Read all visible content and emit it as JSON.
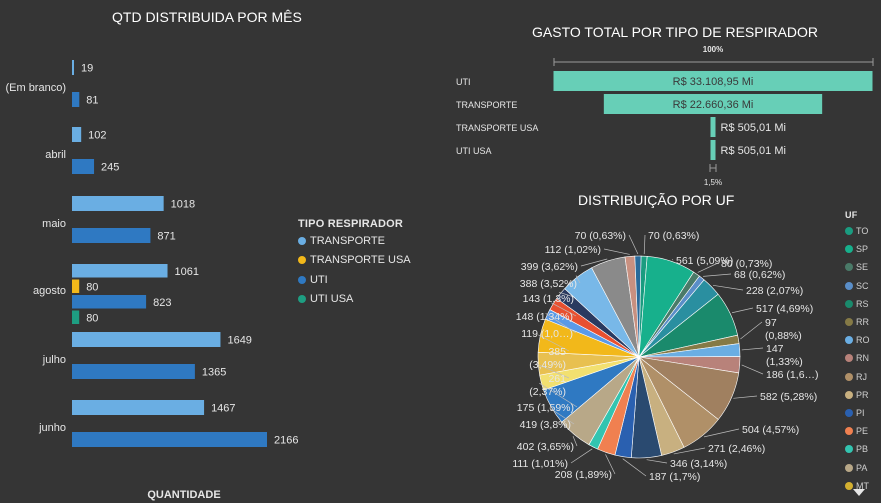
{
  "bar_chart": {
    "title": "QTD DISTRIBUIDA POR MÊS",
    "xlabel": "QUANTIDADE",
    "legend_title": "TIPO RESPIRADOR",
    "legend": [
      {
        "name": "TRANSPORTE",
        "color": "#6aaee3"
      },
      {
        "name": "TRANSPORTE USA",
        "color": "#f2b81a"
      },
      {
        "name": "UTI",
        "color": "#2f79c2"
      },
      {
        "name": "UTI USA",
        "color": "#1e9e82"
      }
    ]
  },
  "funnel": {
    "title": "GASTO TOTAL POR TIPO DE RESPIRADOR",
    "top_pct": "100%",
    "bottom_pct": "1,5%"
  },
  "pie": {
    "title": "DISTRIBUIÇÃO POR UF",
    "legend_title": "UF",
    "legend": [
      {
        "name": "TO",
        "color": "#1a9c80"
      },
      {
        "name": "SP",
        "color": "#17b08c"
      },
      {
        "name": "SE",
        "color": "#4a7a68"
      },
      {
        "name": "SC",
        "color": "#5a8ec8"
      },
      {
        "name": "RS",
        "color": "#1a8a6c"
      },
      {
        "name": "RR",
        "color": "#857a46"
      },
      {
        "name": "RO",
        "color": "#6aaee3"
      },
      {
        "name": "RN",
        "color": "#b8827a"
      },
      {
        "name": "RJ",
        "color": "#b09068"
      },
      {
        "name": "PR",
        "color": "#c8b080"
      },
      {
        "name": "PI",
        "color": "#2a60b0"
      },
      {
        "name": "PE",
        "color": "#f08050"
      },
      {
        "name": "PB",
        "color": "#33c4b0"
      },
      {
        "name": "PA",
        "color": "#b8a888"
      },
      {
        "name": "MT",
        "color": "#d4b030"
      }
    ]
  },
  "chart_data": [
    {
      "type": "bar",
      "title": "QTD DISTRIBUIDA POR MÊS",
      "xlabel": "QUANTIDADE",
      "categories": [
        "(Em branco)",
        "abril",
        "maio",
        "agosto",
        "julho",
        "junho"
      ],
      "series": [
        {
          "name": "TRANSPORTE",
          "values": [
            19,
            102,
            1018,
            1061,
            1649,
            1467
          ]
        },
        {
          "name": "TRANSPORTE USA",
          "values": [
            null,
            null,
            null,
            80,
            null,
            null
          ]
        },
        {
          "name": "UTI",
          "values": [
            81,
            245,
            871,
            823,
            1365,
            2166
          ]
        },
        {
          "name": "UTI USA",
          "values": [
            null,
            null,
            null,
            80,
            null,
            null
          ]
        }
      ]
    },
    {
      "type": "bar",
      "title": "GASTO TOTAL POR TIPO DE RESPIRADOR",
      "categories": [
        "UTI",
        "TRANSPORTE",
        "TRANSPORTE USA",
        "UTI USA"
      ],
      "values": [
        33108.95,
        22660.36,
        505.01,
        505.01
      ],
      "value_labels": [
        "R$ 33.108,95 Mi",
        "R$ 22.660,36 Mi",
        "R$ 505,01 Mi",
        "R$ 505,01 Mi"
      ]
    },
    {
      "type": "pie",
      "title": "DISTRIBUIÇÃO POR UF",
      "slices": [
        {
          "value": 70,
          "label": "70 (0,63%)",
          "color": "#1a9c80"
        },
        {
          "value": 561,
          "label": "561 (5,09%)",
          "color": "#17b08c"
        },
        {
          "value": 80,
          "label": "80 (0,73%)",
          "color": "#4a7a68"
        },
        {
          "value": 68,
          "label": "68 (0,62%)",
          "color": "#5a8ec8"
        },
        {
          "value": 228,
          "label": "228 (2,07%)",
          "color": "#2a8fa0"
        },
        {
          "value": 517,
          "label": "517 (4,69%)",
          "color": "#1a8a6c"
        },
        {
          "value": 97,
          "label": "97 (0,88%)",
          "color": "#857a46"
        },
        {
          "value": 147,
          "label": "147 (1,33%)",
          "color": "#6aaee3"
        },
        {
          "value": 186,
          "label": "186 (1,6…)",
          "color": "#b8827a"
        },
        {
          "value": 582,
          "label": "582 (5,28%)",
          "color": "#a08060"
        },
        {
          "value": 504,
          "label": "504 (4,57%)",
          "color": "#b09068"
        },
        {
          "value": 271,
          "label": "271 (2,46%)",
          "color": "#c8b080"
        },
        {
          "value": 346,
          "label": "346 (3,14%)",
          "color": "#2a4a70"
        },
        {
          "value": 187,
          "label": "187 (1,7%)",
          "color": "#2a60b0"
        },
        {
          "value": 208,
          "label": "208 (1,89%)",
          "color": "#f08050"
        },
        {
          "value": 111,
          "label": "111 (1,01%)",
          "color": "#33c4b0"
        },
        {
          "value": 402,
          "label": "402 (3,65%)",
          "color": "#b8a888"
        },
        {
          "value": 419,
          "label": "419 (3,8%)",
          "color": "#2f79c2"
        },
        {
          "value": 175,
          "label": "175 (1,59%)",
          "color": "#f2e070"
        },
        {
          "value": 261,
          "label": "261 (2,37%)",
          "color": "#e8c050"
        },
        {
          "value": 385,
          "label": "385 (3,49%)",
          "color": "#f2b81a"
        },
        {
          "value": 119,
          "label": "119 (1,0…)",
          "color": "#5a9ae8"
        },
        {
          "value": 148,
          "label": "148 (1,34%)",
          "color": "#e85030"
        },
        {
          "value": 143,
          "label": "143 (1,3%)",
          "color": "#2a3a60"
        },
        {
          "value": 388,
          "label": "388 (3,52%)",
          "color": "#78b8e8"
        },
        {
          "value": 399,
          "label": "399 (3,62%)",
          "color": "#8a8a8a"
        },
        {
          "value": 112,
          "label": "112 (1,02%)",
          "color": "#c89080"
        },
        {
          "value": 70,
          "label": "70 (0,63%)",
          "color": "#2a6a9a"
        }
      ]
    }
  ]
}
